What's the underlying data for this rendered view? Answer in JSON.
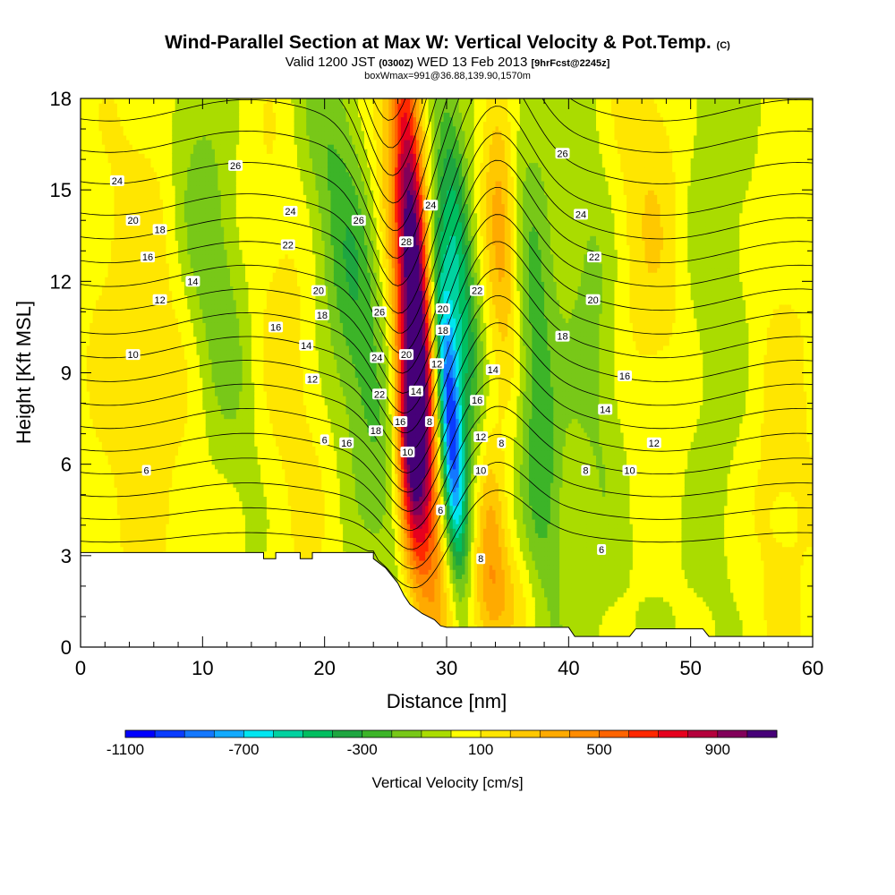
{
  "title": {
    "main": "Wind-Parallel Section at Max W: Vertical Velocity & Pot.Temp.",
    "main_tag": "(C)",
    "valid_prefix": "Valid 1200 JST",
    "valid_zulu": "(0300Z)",
    "valid_date": "WED 13 Feb 2013",
    "forecast_tag": "[9hrFcst@2245z]",
    "box_info": "boxWmax=991@36.88,139.90,1570m"
  },
  "chart_data": {
    "type": "heatmap",
    "xlabel": "Distance [nm]",
    "ylabel": "Height [Kft MSL]",
    "xlim": [
      0,
      60
    ],
    "ylim": [
      0,
      18
    ],
    "xticks": [
      "0",
      "10",
      "20",
      "30",
      "40",
      "50",
      "60"
    ],
    "yticks": [
      "0",
      "3",
      "6",
      "9",
      "12",
      "15",
      "18"
    ],
    "colorbar": {
      "label": "Vertical Velocity [cm/s]",
      "tick_labels": [
        "-1100",
        "-700",
        "-300",
        "100",
        "500",
        "900"
      ],
      "range": [
        -1100,
        1100
      ],
      "step": 100,
      "colors": [
        "#0000ff",
        "#0a3cff",
        "#1478ff",
        "#12aaff",
        "#00e6f0",
        "#00d2a0",
        "#00be60",
        "#1ea640",
        "#3cb428",
        "#78c818",
        "#aadc00",
        "#ffff00",
        "#ffe600",
        "#ffc800",
        "#ffaa00",
        "#ff8c00",
        "#ff6400",
        "#ff2800",
        "#e6001e",
        "#b4003c",
        "#82005a",
        "#460078"
      ]
    },
    "terrain_kft": [
      [
        0,
        3.1
      ],
      [
        15,
        3.1
      ],
      [
        15,
        2.9
      ],
      [
        16,
        2.9
      ],
      [
        16,
        3.1
      ],
      [
        18,
        3.1
      ],
      [
        18,
        2.9
      ],
      [
        19,
        2.9
      ],
      [
        19,
        3.1
      ],
      [
        24,
        3.1
      ],
      [
        24,
        2.9
      ],
      [
        25,
        2.6
      ],
      [
        26,
        2.1
      ],
      [
        26.5,
        1.7
      ],
      [
        27,
        1.4
      ],
      [
        28,
        1.1
      ],
      [
        29,
        0.9
      ],
      [
        29.5,
        0.7
      ],
      [
        30,
        0.65
      ],
      [
        40,
        0.65
      ],
      [
        40.5,
        0.35
      ],
      [
        45,
        0.35
      ],
      [
        45.5,
        0.6
      ],
      [
        51,
        0.6
      ],
      [
        51.5,
        0.35
      ],
      [
        60,
        0.35
      ]
    ],
    "w_field": [
      {
        "x": 27.5,
        "y": 11.5,
        "value": 1050,
        "sx": 0.9,
        "sy": 6.5,
        "tilt": -0.14
      },
      {
        "x": 27.0,
        "y": 6.5,
        "value": 850,
        "sx": 0.8,
        "sy": 3.0,
        "tilt": -0.1
      },
      {
        "x": 30.3,
        "y": 7.5,
        "value": -1000,
        "sx": 0.7,
        "sy": 3.5,
        "tilt": -0.16
      },
      {
        "x": 31.0,
        "y": 12.5,
        "value": -450,
        "sx": 0.9,
        "sy": 4.5,
        "tilt": -0.2
      },
      {
        "x": 34.5,
        "y": 13.5,
        "value": 350,
        "sx": 1.0,
        "sy": 4.0,
        "tilt": -0.1
      },
      {
        "x": 33.5,
        "y": 4.0,
        "value": 300,
        "sx": 0.9,
        "sy": 2.5,
        "tilt": -0.1
      },
      {
        "x": 25.5,
        "y": 14.0,
        "value": 200,
        "sx": 1.2,
        "sy": 4.0,
        "tilt": -0.15
      },
      {
        "x": 22.5,
        "y": 11.5,
        "value": -300,
        "sx": 1.8,
        "sy": 5.5,
        "tilt": -0.35
      },
      {
        "x": 10.5,
        "y": 13.0,
        "value": -230,
        "sx": 1.8,
        "sy": 4.5,
        "tilt": -0.3
      },
      {
        "x": 37.5,
        "y": 8.0,
        "value": -280,
        "sx": 1.3,
        "sy": 6.0,
        "tilt": -0.1
      },
      {
        "x": 42.0,
        "y": 10.5,
        "value": -150,
        "sx": 1.5,
        "sy": 5.0,
        "tilt": -0.1
      },
      {
        "x": 52.0,
        "y": 12.0,
        "value": -130,
        "sx": 2.5,
        "sy": 8.0,
        "tilt": -0.05
      },
      {
        "x": 47.0,
        "y": 14.0,
        "value": 200,
        "sx": 2.5,
        "sy": 6.0,
        "tilt": -0.1
      },
      {
        "x": 5.0,
        "y": 10.0,
        "value": 180,
        "sx": 3.5,
        "sy": 7.0,
        "tilt": 0.0
      },
      {
        "x": 17.0,
        "y": 9.0,
        "value": 150,
        "sx": 2.0,
        "sy": 7.0,
        "tilt": -0.2
      },
      {
        "x": 57.0,
        "y": 6.0,
        "value": 150,
        "sx": 3.0,
        "sy": 7.0,
        "tilt": 0.0
      },
      {
        "x": 34.0,
        "y": 1.5,
        "value": 220,
        "sx": 2.5,
        "sy": 1.5,
        "tilt": 0.0
      }
    ],
    "theta_levels": [
      6,
      8,
      10,
      12,
      14,
      16,
      18,
      20,
      22,
      24,
      26,
      28
    ],
    "theta_labels": [
      {
        "text": "24",
        "x": 3,
        "y": 15.3
      },
      {
        "text": "20",
        "x": 4.3,
        "y": 14.0
      },
      {
        "text": "18",
        "x": 6.5,
        "y": 13.7
      },
      {
        "text": "16",
        "x": 5.5,
        "y": 12.8
      },
      {
        "text": "14",
        "x": 9.2,
        "y": 12.0
      },
      {
        "text": "12",
        "x": 6.5,
        "y": 11.4
      },
      {
        "text": "10",
        "x": 4.3,
        "y": 9.6
      },
      {
        "text": "6",
        "x": 5.4,
        "y": 5.8
      },
      {
        "text": "26",
        "x": 12.7,
        "y": 15.8
      },
      {
        "text": "24",
        "x": 17.2,
        "y": 14.3
      },
      {
        "text": "22",
        "x": 17.0,
        "y": 13.2
      },
      {
        "text": "16",
        "x": 16.0,
        "y": 10.5
      },
      {
        "text": "14",
        "x": 18.5,
        "y": 9.9
      },
      {
        "text": "12",
        "x": 19.0,
        "y": 8.8
      },
      {
        "text": "6",
        "x": 20.0,
        "y": 6.8
      },
      {
        "text": "20",
        "x": 19.5,
        "y": 11.7
      },
      {
        "text": "18",
        "x": 19.8,
        "y": 10.9
      },
      {
        "text": "16",
        "x": 21.8,
        "y": 6.7
      },
      {
        "text": "26",
        "x": 22.8,
        "y": 14.0
      },
      {
        "text": "26",
        "x": 24.5,
        "y": 11.0
      },
      {
        "text": "24",
        "x": 24.3,
        "y": 9.5
      },
      {
        "text": "22",
        "x": 24.5,
        "y": 8.3
      },
      {
        "text": "18",
        "x": 24.2,
        "y": 7.1
      },
      {
        "text": "28",
        "x": 26.7,
        "y": 13.3
      },
      {
        "text": "20",
        "x": 26.7,
        "y": 9.6
      },
      {
        "text": "16",
        "x": 26.2,
        "y": 7.4
      },
      {
        "text": "14",
        "x": 27.5,
        "y": 8.4
      },
      {
        "text": "10",
        "x": 26.8,
        "y": 6.4
      },
      {
        "text": "24",
        "x": 28.7,
        "y": 14.5
      },
      {
        "text": "20",
        "x": 29.7,
        "y": 11.1
      },
      {
        "text": "18",
        "x": 29.7,
        "y": 10.4
      },
      {
        "text": "12",
        "x": 29.2,
        "y": 9.3
      },
      {
        "text": "8",
        "x": 28.6,
        "y": 7.4
      },
      {
        "text": "6",
        "x": 29.5,
        "y": 4.5
      },
      {
        "text": "22",
        "x": 32.5,
        "y": 11.7
      },
      {
        "text": "16",
        "x": 32.5,
        "y": 8.1
      },
      {
        "text": "14",
        "x": 33.8,
        "y": 9.1
      },
      {
        "text": "12",
        "x": 32.8,
        "y": 6.9
      },
      {
        "text": "10",
        "x": 32.8,
        "y": 5.8
      },
      {
        "text": "8",
        "x": 34.5,
        "y": 6.7
      },
      {
        "text": "8",
        "x": 32.8,
        "y": 2.9
      },
      {
        "text": "26",
        "x": 39.5,
        "y": 16.2
      },
      {
        "text": "24",
        "x": 41.0,
        "y": 14.2
      },
      {
        "text": "22",
        "x": 42.1,
        "y": 12.8
      },
      {
        "text": "20",
        "x": 42.0,
        "y": 11.4
      },
      {
        "text": "18",
        "x": 39.5,
        "y": 10.2
      },
      {
        "text": "16",
        "x": 44.6,
        "y": 8.9
      },
      {
        "text": "14",
        "x": 43.0,
        "y": 7.8
      },
      {
        "text": "12",
        "x": 47.0,
        "y": 6.7
      },
      {
        "text": "10",
        "x": 45.0,
        "y": 5.8
      },
      {
        "text": "8",
        "x": 41.4,
        "y": 5.8
      },
      {
        "text": "6",
        "x": 42.7,
        "y": 3.2
      }
    ]
  }
}
